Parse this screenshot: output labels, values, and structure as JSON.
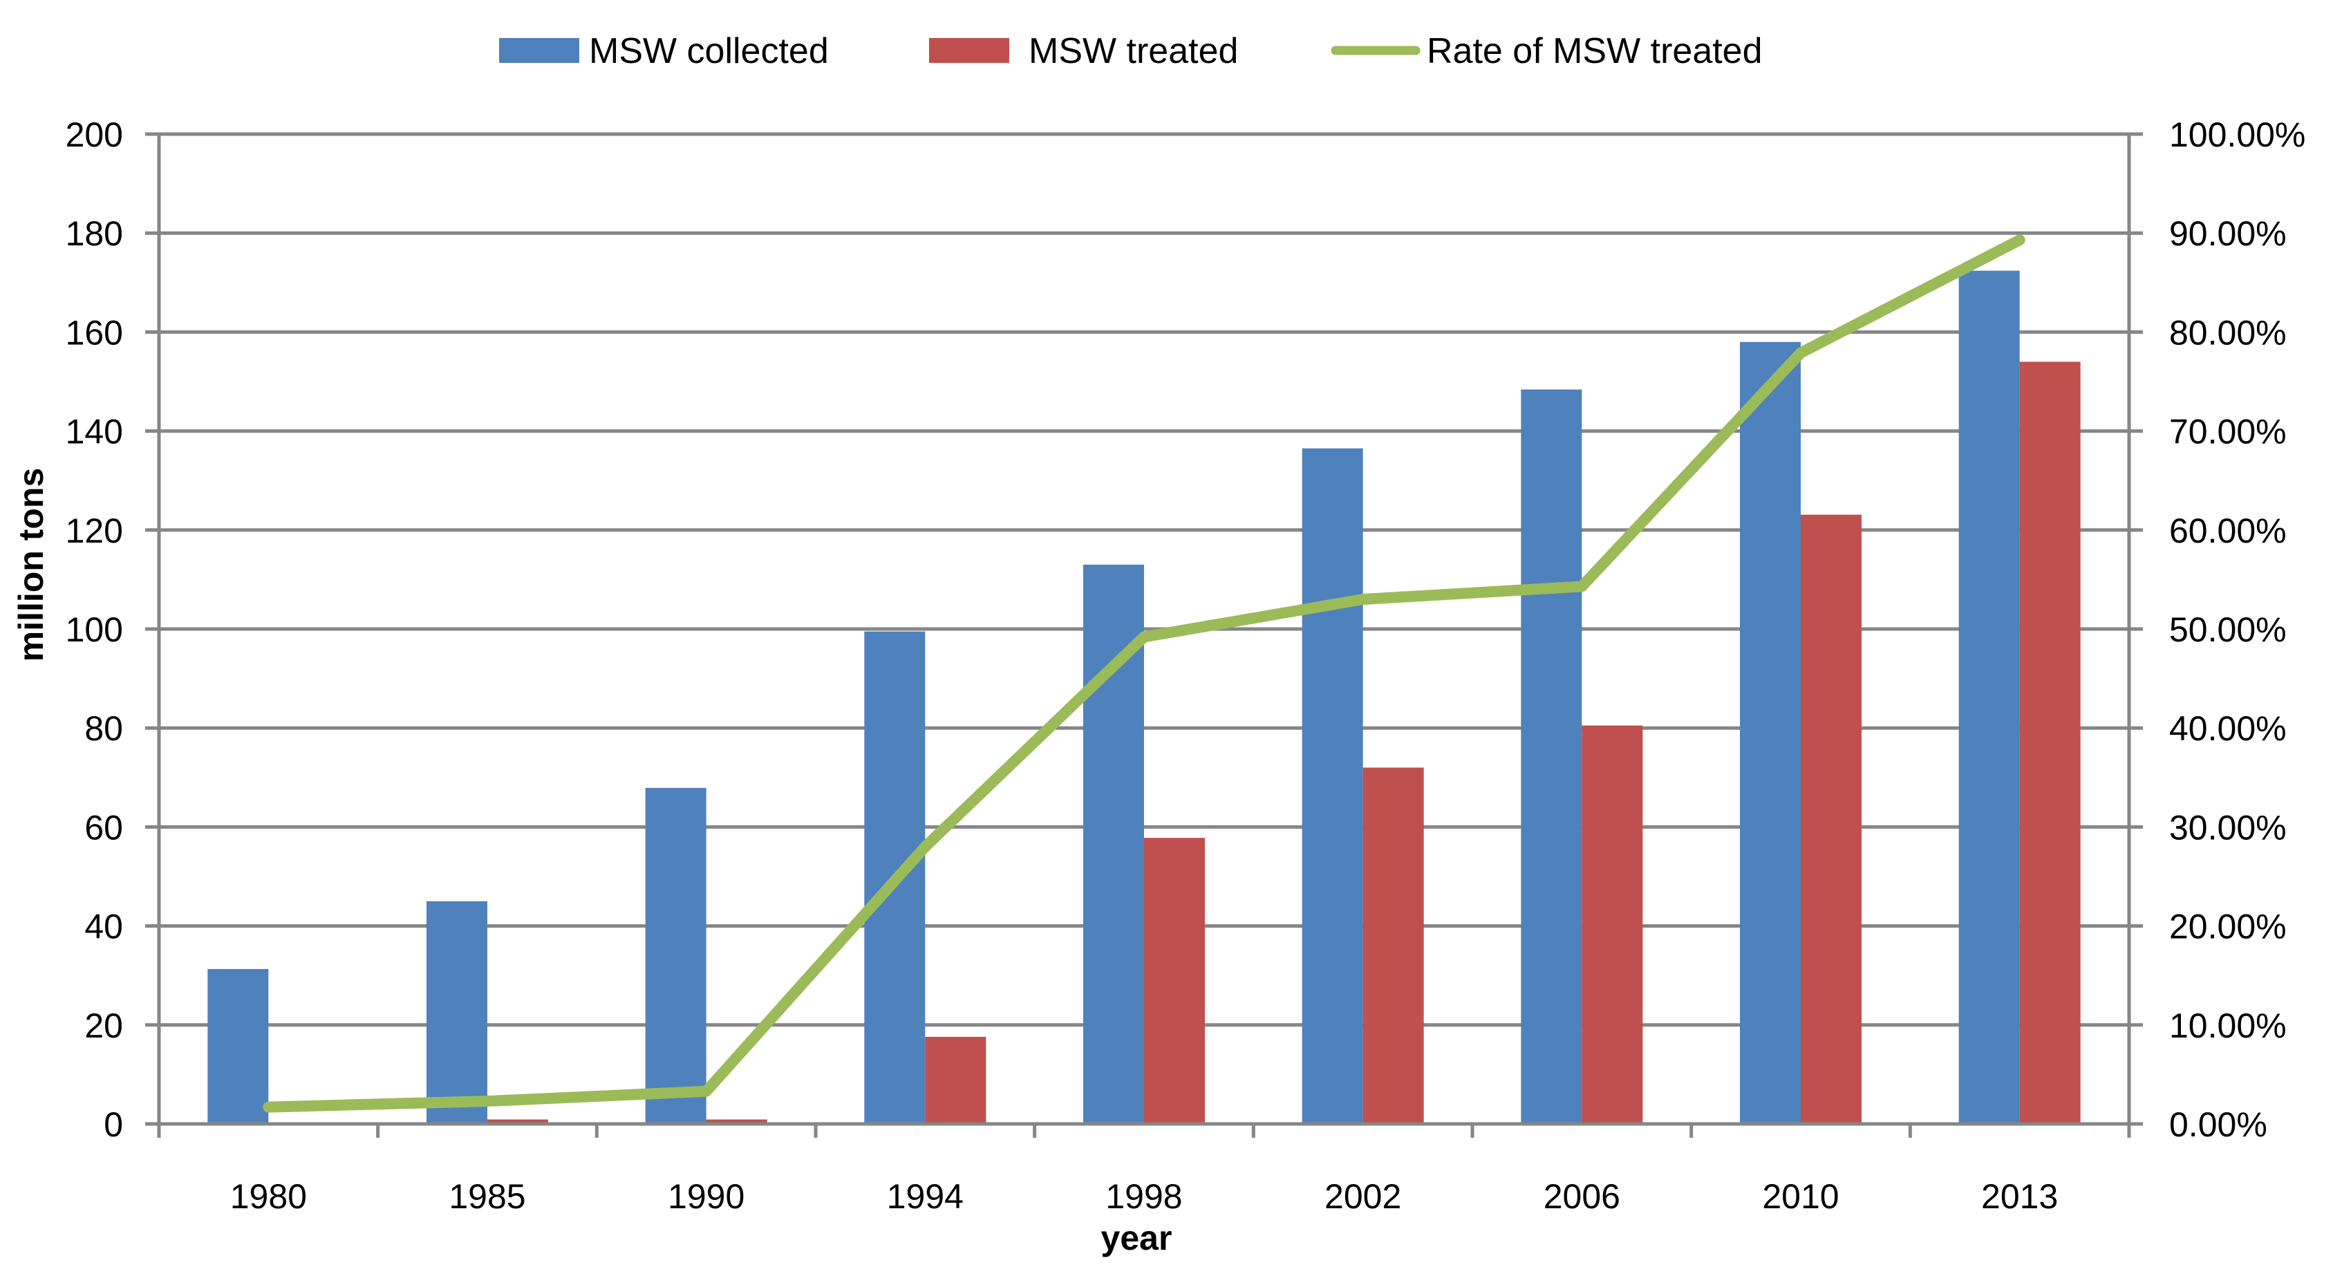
{
  "chart_data": {
    "type": "bar",
    "title": "",
    "xlabel": "year",
    "ylabel": "million tons",
    "y2label": "",
    "categories": [
      "1980",
      "1985",
      "1990",
      "1994",
      "1998",
      "2002",
      "2006",
      "2010",
      "2013"
    ],
    "ylim": [
      0,
      200
    ],
    "yticks": [
      0,
      20,
      40,
      60,
      80,
      100,
      120,
      140,
      160,
      180,
      200
    ],
    "y2lim": [
      0,
      100
    ],
    "y2ticks": [
      "0.00%",
      "10.00%",
      "20.00%",
      "30.00%",
      "40.00%",
      "50.00%",
      "60.00%",
      "70.00%",
      "80.00%",
      "90.00%",
      "100.00%"
    ],
    "grid": true,
    "legend_position": "top",
    "series": [
      {
        "name": "MSW collected",
        "kind": "bar",
        "axis": "left",
        "color": "#4F81BD",
        "values": [
          31.3,
          45.0,
          67.9,
          99.5,
          113.0,
          136.5,
          148.4,
          158.0,
          172.4
        ]
      },
      {
        "name": "MSW treated",
        "kind": "bar",
        "axis": "left",
        "color": "#C0504D",
        "values": [
          0.3,
          0.9,
          0.9,
          17.6,
          57.8,
          72.0,
          80.5,
          123.1,
          154.0
        ]
      },
      {
        "name": "Rate of MSW treated",
        "kind": "line",
        "axis": "right",
        "color": "#9BBB59",
        "values": [
          1.7,
          2.3,
          3.3,
          28.0,
          49.2,
          53.0,
          54.3,
          77.9,
          89.3
        ]
      }
    ]
  }
}
